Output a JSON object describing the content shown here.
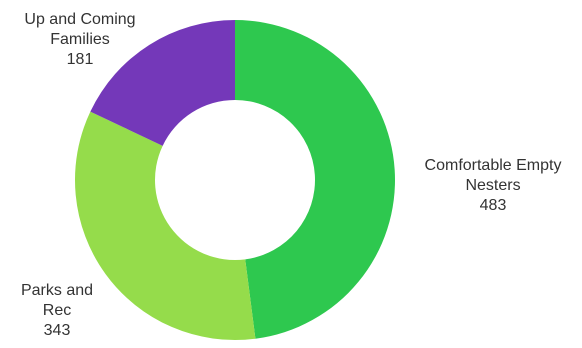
{
  "chart_data": {
    "type": "pie",
    "variant": "donut",
    "title": "",
    "slices": [
      {
        "label_lines": [
          "Comfortable Empty",
          "Nesters"
        ],
        "value": 483,
        "value_text": "483",
        "color": "#2ec84f"
      },
      {
        "label_lines": [
          "Parks and",
          "Rec"
        ],
        "value": 343,
        "value_text": "343",
        "color": "#95dc4b"
      },
      {
        "label_lines": [
          "Up and Coming",
          "Families"
        ],
        "value": 181,
        "value_text": "181",
        "color": "#7438b9"
      }
    ],
    "start_angle_deg": 0,
    "direction": "clockwise",
    "legend": "none"
  }
}
